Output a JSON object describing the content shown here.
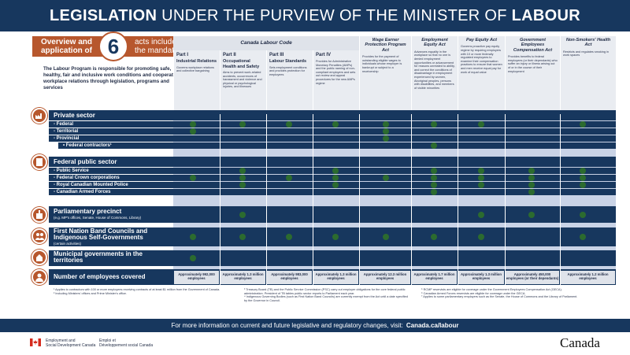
{
  "header": {
    "title_bold_1": "LEGISLATION",
    "title_mid": " UNDER THE PURVIEW OF THE MINISTER OF ",
    "title_bold_2": "LABOUR"
  },
  "overview": {
    "left": "Overview and application of",
    "number": "6",
    "right": "acts included in the mandate.",
    "intro": "The Labour Program is responsible for promoting safe, healthy, fair and inclusive work conditions and cooperative workplace relations through legislation, programs and services"
  },
  "columns": {
    "clc_group": "Canada Labour Code",
    "parts": [
      {
        "part": "Part I",
        "title": "Industrial Relations",
        "desc": "Governs workplace relations and collective bargaining"
      },
      {
        "part": "Part II",
        "title": "Occupational Health and Safety",
        "desc": "Aims to prevent work-related accidents, occurrences of harassment and violence and physical or psychological injuries, and illnesses"
      },
      {
        "part": "Part III",
        "title": "Labour Standards",
        "desc": "Sets employment conditions and provides protection for employees"
      },
      {
        "part": "Part IV",
        "title": "",
        "desc": "Provides for Administrative Monetary Penalties (AMPs) and the public naming of non-compliant employers and sets out review and appeal procedures for the new AMPs regime"
      }
    ],
    "acts": [
      {
        "title": "Wage Earner Protection Program Act",
        "desc": "Provides for the payment of outstanding eligible wages to individuals whose employer is bankrupt or subject to a receivership"
      },
      {
        "title": "Employment Equity Act",
        "desc": "Advances equality in the workplace so that no one is denied employment opportunities or advancement for reasons unrelated to ability, and correct the conditions of disadvantage in employment experienced by women, Aboriginal peoples, persons with disabilities, and members of visible minorities"
      },
      {
        "title": "Pay Equity Act",
        "desc": "Governs proactive pay equity regime by requiring employers with 10 or more federally regulated employees to examine their compensation practices to ensure that women and men receive equal pay for work of equal value"
      },
      {
        "title": "Government Employees Compensation Act",
        "desc": "Provides benefits to federal employees (or their dependants) who suffer an injury or illness arising out of or in the course of their employment"
      },
      {
        "title": "Non-Smokers' Health Act",
        "desc": "Restricts and regulates smoking in work spaces"
      }
    ]
  },
  "sections": {
    "private": {
      "title": "Private sector",
      "rows": [
        "- Federal",
        "- Territorial",
        "- Provincial",
        "• Federal contractors¹"
      ]
    },
    "federal": {
      "title": "Federal public sector",
      "rows": [
        "- Public Service",
        "- Federal Crown corporations",
        "- Royal Canadian Mounted Police",
        "- Canadian Armed Forces"
      ]
    },
    "parliament": {
      "title": "Parliamentary precinct",
      "sub": "(e.g. MP's offices, Senate, House of Commons, Library)"
    },
    "first_nation": {
      "title": "First Nation Band Councils and Indigenous Self-Governments",
      "sub": "(certain activities)"
    },
    "municipal": {
      "title": "Municipal governments in the territories"
    },
    "employees": {
      "title": "Number of employees covered"
    }
  },
  "employees_covered": [
    "Approximately 992,000 employees",
    "Approximately 1.3 million employees",
    "Approximately 983,000 employees",
    "Approximately 1.3 million employees",
    "Approximately 12.3 million employees",
    "Approximately 1.7 million employees",
    "Approximately 1.3 million employees",
    "Approximately 450,000 employees (or their dependants)",
    "Approximately 1.2 million employees"
  ],
  "notes": {
    "col1": [
      "¹ Applies to contractors with 100 or more employees receiving contracts of at least $1 million from the Government of Canada.",
      "² Including Ministers' offices and Prime Minister's office."
    ],
    "col2": [
      "³ Treasury Board (TB) and the Public Service Commission (PSC) carry out employer obligations for the core federal public administration. President of TB tables public sector reports to Parliament each year.",
      "⁴ Indigenous Governing Bodies (such as First Nation Band Councils) are currently exempt from the Act until a date specified by the Governor in Council."
    ],
    "col3": [
      "⁵ RCMP reservists are eligible for coverage under the Government Employees Compensation Act (GECA).",
      "⁶ Canadian Armed Forces reservists are eligible for coverage under the GECA.",
      "⁷ Applies to some parliamentary employers such as the Senate, the House of Commons and the Library of Parliament."
    ]
  },
  "footer": {
    "text": "For more information on current and future legislative and regulatory changes, visit:",
    "link": "Canada.ca/labour"
  },
  "branding": {
    "en_1": "Employment and",
    "en_2": "Social Development Canada",
    "fr_1": "Emploi et",
    "fr_2": "Développement social Canada",
    "wordmark": "Canada"
  },
  "colors": {
    "navy": "#17375e",
    "accent": "#b7572d",
    "dot": "#2c6b2f",
    "cell": "#c9d3e6"
  }
}
